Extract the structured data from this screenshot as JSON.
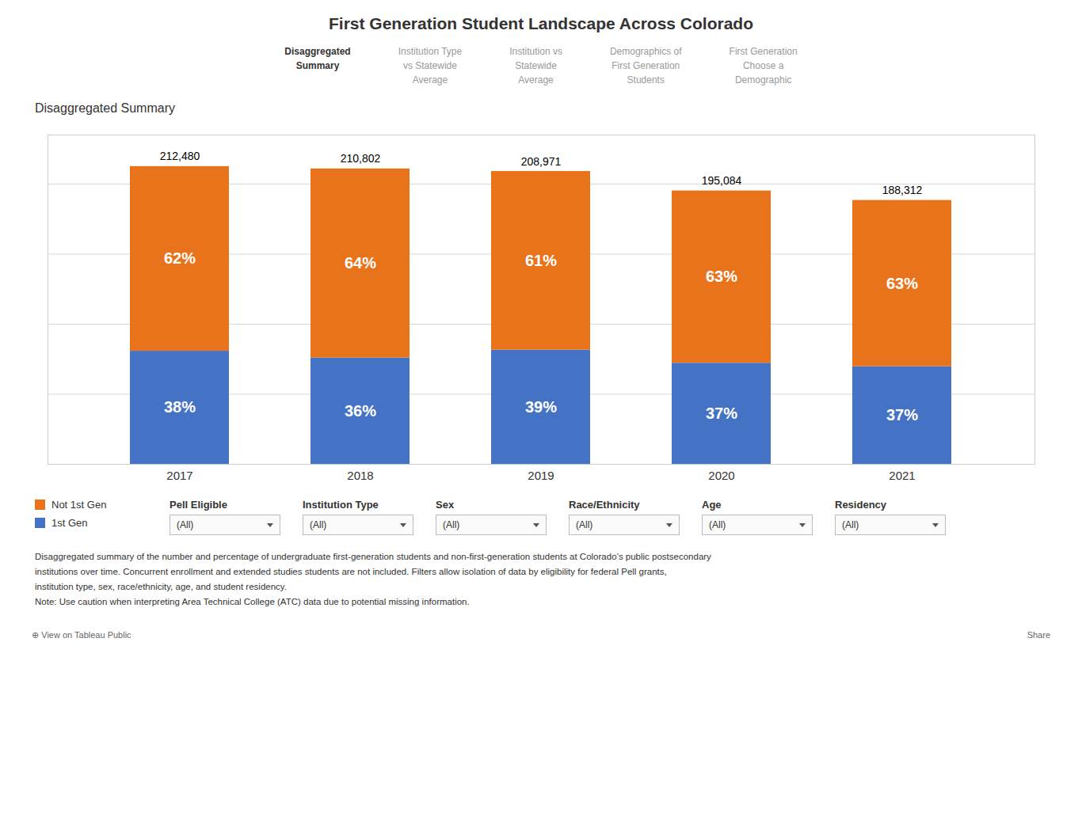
{
  "chart_data": {
    "type": "bar",
    "stacked": true,
    "title": "First Generation Student Landscape Across Colorado",
    "subtitle": "Disaggregated Summary",
    "categories": [
      "2017",
      "2018",
      "2019",
      "2020",
      "2021"
    ],
    "series": [
      {
        "name": "1st Gen",
        "color": "#4472C4",
        "values": [
          80742.4,
          75888.72,
          81498.69,
          72181.08,
          69675.44
        ],
        "percent": [
          38,
          36,
          39,
          37,
          37
        ],
        "percent_labels": [
          "38%",
          "36%",
          "39%",
          "37%",
          "37%"
        ]
      },
      {
        "name": "Not 1st Gen",
        "color": "#E8731A",
        "values": [
          131737.6,
          134913.28,
          127472.31,
          122902.92,
          118636.56
        ],
        "percent": [
          62,
          64,
          61,
          63,
          63
        ],
        "percent_labels": [
          "62%",
          "64%",
          "61%",
          "63%",
          "63%"
        ]
      }
    ],
    "totals": [
      212480,
      210802,
      208971,
      195084,
      188312
    ],
    "total_labels": [
      "212,480",
      "210,802",
      "208,971",
      "195,084",
      "188,312"
    ],
    "ylim": [
      0,
      235000
    ],
    "yticks": [
      0,
      50000,
      100000,
      150000,
      200000
    ],
    "grid": true,
    "tick_labels": "x",
    "legend": "bottom"
  },
  "nav_items": [
    "Disaggregated\nSummary",
    "Institution Type\nvs Statewide\nAverage",
    "Institution vs\nStatewide\nAverage",
    "Demographics of\nFirst Generation\nStudents",
    "First Generation\nChoose a\nDemographic"
  ],
  "filters": [
    {
      "label": "Pell Eligible",
      "value": "(All)"
    },
    {
      "label": "Institution Type",
      "value": "(All)"
    },
    {
      "label": "Sex",
      "value": "(All)"
    },
    {
      "label": "Race/Ethnicity",
      "value": "(All)"
    },
    {
      "label": "Age",
      "value": "(All)"
    },
    {
      "label": "Residency",
      "value": "(All)"
    }
  ],
  "footnotes": [
    "Disaggregated summary of the number and percentage of undergraduate first-generation students and non-first-generation students at Colorado’s public postsecondary",
    "institutions over time. Concurrent enrollment and extended studies students are not included. Filters allow isolation of data by eligibility for federal Pell grants,",
    "institution type, sex, race/ethnicity, age, and student residency.",
    "Note: Use caution when interpreting Area Technical College (ATC) data due to potential missing information."
  ],
  "footer": [
    "⊕ View on Tableau Public",
    "Share"
  ]
}
